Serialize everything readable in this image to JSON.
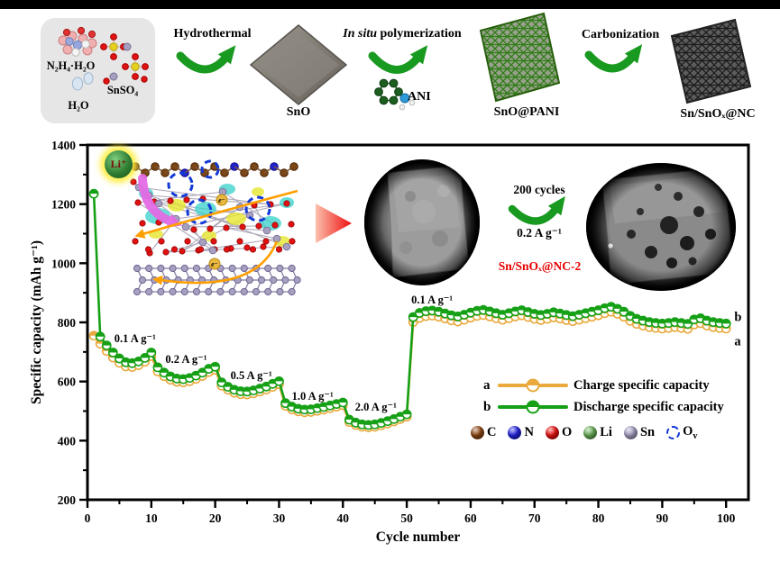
{
  "scheme": {
    "reagent_box": {
      "n2h4_label": "N₂H₄·H₂O",
      "snso4_label": "SnSO₄",
      "h2o_label": "H₂O"
    },
    "step1_label": "Hydrothermal",
    "step2_label_italic": "In situ",
    "step2_label_rest": " polymerization",
    "step3_label": "Carbonization",
    "sno_label": "SnO",
    "ani_label": "ANI",
    "sno_pani_label": "SnO@PANI",
    "product_label": "Sn/SnOₓ@NC"
  },
  "inset": {
    "li_badge": "Li⁺"
  },
  "sem": {
    "cycles_text": "200 cycles",
    "rate_text": "0.2 A g⁻¹",
    "sample_text": "Sn/SnOₓ@NC-2"
  },
  "legend": {
    "series": [
      {
        "key": "a",
        "label": "Charge specific capacity",
        "color": "#E9A93D"
      },
      {
        "key": "b",
        "label": "Discharge specific capacity",
        "color": "#16A016"
      }
    ],
    "atoms": [
      {
        "label": "C",
        "color": "#8B4513"
      },
      {
        "label": "N",
        "color": "#2222DD"
      },
      {
        "label": "O",
        "color": "#E31010"
      },
      {
        "label": "Li",
        "color": "#66AA55"
      },
      {
        "label": "Sn",
        "color": "#A39BBE"
      },
      {
        "label": "O",
        "sub": "v",
        "color": "#1040E0"
      }
    ]
  },
  "chart_data": {
    "type": "line",
    "title": "",
    "xlabel": "Cycle number",
    "ylabel": "Specific capacity (mAh g⁻¹)",
    "xlim": [
      0,
      103.5
    ],
    "ylim": [
      200,
      1400
    ],
    "x_ticks": [
      0,
      10,
      20,
      30,
      40,
      50,
      60,
      70,
      80,
      90,
      100
    ],
    "y_ticks": [
      200,
      400,
      600,
      800,
      1000,
      1200,
      1400
    ],
    "x_minor_step": 5,
    "y_minor_step": 100,
    "grid": false,
    "legend_position": "lower right",
    "cycles_start_at": 1,
    "series": [
      {
        "id": "a",
        "name": "Charge specific capacity",
        "color": "#E9A93D",
        "values": [
          755,
          728,
          703,
          681,
          663,
          651,
          649,
          655,
          667,
          686,
          634,
          618,
          606,
          599,
          597,
          601,
          609,
          619,
          632,
          640,
          586,
          572,
          562,
          557,
          556,
          560,
          566,
          573,
          582,
          591,
          518,
          506,
          499,
          496,
          497,
          501,
          505,
          510,
          515,
          520,
          463,
          453,
          447,
          445,
          447,
          452,
          458,
          465,
          473,
          481,
          801,
          815,
          821,
          823,
          819,
          813,
          807,
          803,
          809,
          816,
          822,
          825,
          820,
          814,
          809,
          814,
          820,
          824,
          818,
          812,
          808,
          812,
          817,
          813,
          808,
          804,
          809,
          814,
          819,
          824,
          831,
          836,
          829,
          819,
          805,
          795,
          789,
          784,
          781,
          779,
          781,
          784,
          781,
          778,
          793,
          797,
          789,
          784,
          781,
          779
        ]
      },
      {
        "id": "b",
        "name": "Discharge specific capacity",
        "color": "#16A016",
        "values": [
          1235,
          752,
          722,
          698,
          678,
          665,
          662,
          668,
          680,
          698,
          648,
          630,
          617,
          610,
          608,
          612,
          620,
          630,
          643,
          650,
          597,
          582,
          572,
          567,
          566,
          570,
          576,
          583,
          592,
          601,
          527,
          515,
          508,
          505,
          506,
          510,
          514,
          519,
          524,
          529,
          471,
          461,
          455,
          453,
          455,
          460,
          466,
          473,
          481,
          489,
          818,
          832,
          838,
          840,
          836,
          830,
          824,
          820,
          826,
          833,
          839,
          842,
          837,
          831,
          826,
          831,
          837,
          841,
          835,
          829,
          825,
          829,
          834,
          830,
          825,
          821,
          826,
          831,
          836,
          841,
          848,
          853,
          846,
          836,
          822,
          812,
          806,
          801,
          798,
          796,
          798,
          801,
          798,
          795,
          810,
          814,
          806,
          801,
          798,
          796
        ]
      }
    ],
    "annotations": [
      {
        "text": "0.1 A g⁻¹",
        "cycle": 4.2,
        "value": 770
      },
      {
        "text": "0.2 A g⁻¹",
        "cycle": 12.2,
        "value": 700
      },
      {
        "text": "0.5 A g⁻¹",
        "cycle": 22.4,
        "value": 645
      },
      {
        "text": "1.0 A g⁻¹",
        "cycle": 32.0,
        "value": 575
      },
      {
        "text": "2.0 A g⁻¹",
        "cycle": 41.9,
        "value": 537
      },
      {
        "text": "0.1 A g⁻¹",
        "cycle": 50.7,
        "value": 900
      }
    ],
    "endpoint_labels": [
      {
        "text": "b",
        "cycle": 101.3,
        "value": 815
      },
      {
        "text": "a",
        "cycle": 101.3,
        "value": 733
      }
    ]
  }
}
